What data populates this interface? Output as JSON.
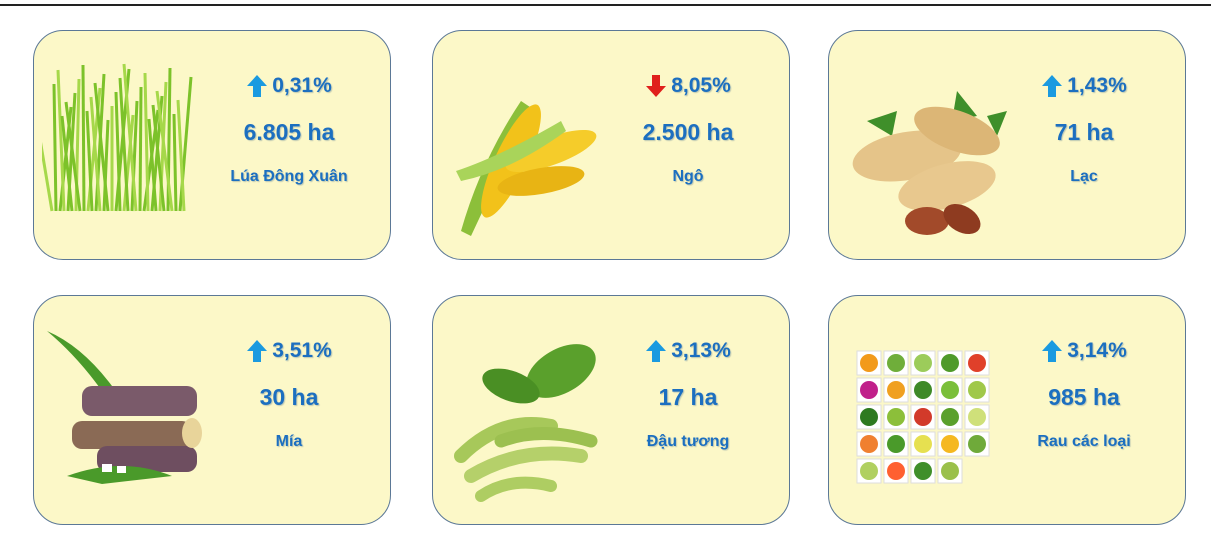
{
  "cards": [
    {
      "change": "0,31%",
      "direction": "up",
      "area": "6.805 ha",
      "name": "Lúa Đông Xuân"
    },
    {
      "change": "8,05%",
      "direction": "down",
      "area": "2.500 ha",
      "name": "Ngô"
    },
    {
      "change": "1,43%",
      "direction": "up",
      "area": "71 ha",
      "name": "Lạc"
    },
    {
      "change": "3,51%",
      "direction": "up",
      "area": "30 ha",
      "name": "Mía"
    },
    {
      "change": "3,13%",
      "direction": "up",
      "area": "17 ha",
      "name": "Đậu tương"
    },
    {
      "change": "3,14%",
      "direction": "up",
      "area": "985 ha",
      "name": "Rau các loại"
    }
  ]
}
